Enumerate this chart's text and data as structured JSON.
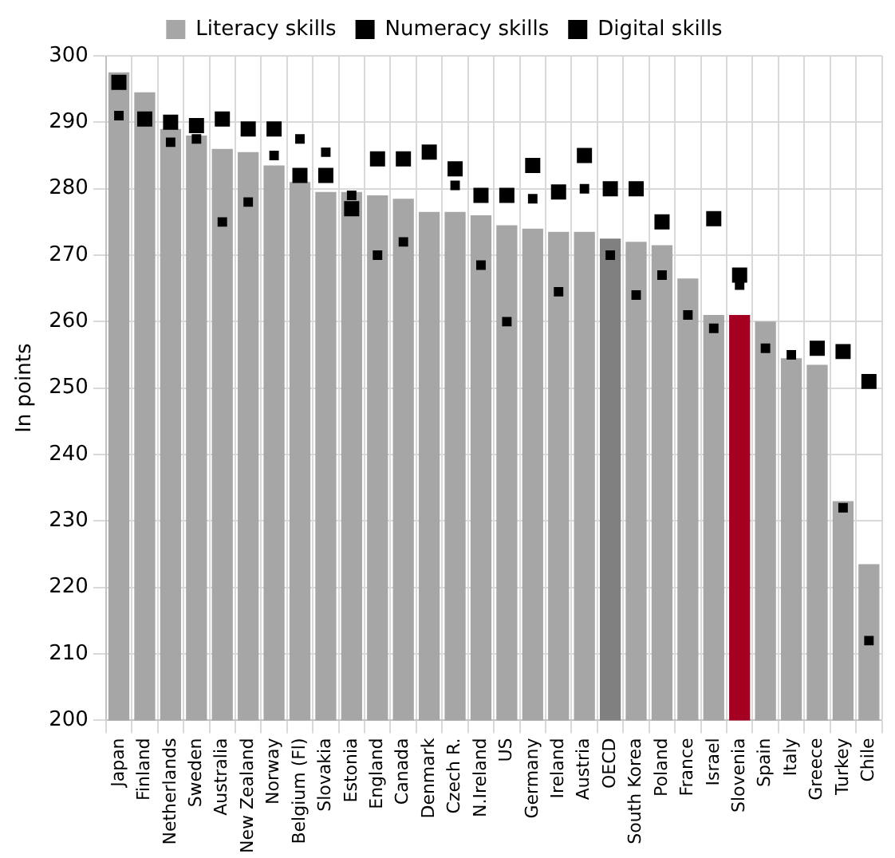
{
  "chart_data": {
    "type": "bar",
    "ylabel": "In points",
    "categories": [
      "Japan",
      "Finland",
      "Netherlands",
      "Sweden",
      "Australia",
      "New Zealand",
      "Norway",
      "Belgium (Fl)",
      "Slovakia",
      "Estonia",
      "England",
      "Canada",
      "Denmark",
      "Czech R.",
      "N.Ireland",
      "US",
      "Germany",
      "Ireland",
      "Austria",
      "OECD",
      "South Korea",
      "Poland",
      "France",
      "Israel",
      "Slovenia",
      "Spain",
      "Italy",
      "Greece",
      "Turkey",
      "Chile"
    ],
    "series": [
      {
        "name": "Literacy skills",
        "type": "bar",
        "color": "#a6a6a6",
        "colors": [
          "#a6a6a6",
          "#a6a6a6",
          "#a6a6a6",
          "#a6a6a6",
          "#a6a6a6",
          "#a6a6a6",
          "#a6a6a6",
          "#a6a6a6",
          "#a6a6a6",
          "#a6a6a6",
          "#a6a6a6",
          "#a6a6a6",
          "#a6a6a6",
          "#a6a6a6",
          "#a6a6a6",
          "#a6a6a6",
          "#a6a6a6",
          "#a6a6a6",
          "#a6a6a6",
          "#808080",
          "#a6a6a6",
          "#a6a6a6",
          "#a6a6a6",
          "#a6a6a6",
          "#a50021",
          "#a6a6a6",
          "#a6a6a6",
          "#a6a6a6",
          "#a6a6a6",
          "#a6a6a6"
        ],
        "values": [
          297.5,
          294.5,
          289,
          288,
          286,
          285.5,
          283.5,
          281,
          279.5,
          279.5,
          279,
          278.5,
          276.5,
          276.5,
          276,
          274.5,
          274,
          273.5,
          273.5,
          272.5,
          272,
          271.5,
          266.5,
          261,
          261,
          260,
          254.5,
          253.5,
          233,
          223.5
        ]
      },
      {
        "name": "Numeracy skills",
        "type": "scatter",
        "marker": "square",
        "color": "#000000",
        "values": [
          291,
          null,
          287,
          287.5,
          275,
          278,
          285,
          287.5,
          285.5,
          279,
          270,
          272,
          null,
          280.5,
          268.5,
          260,
          278.5,
          264.5,
          280,
          270,
          264,
          267,
          261,
          259,
          265.5,
          256,
          255,
          null,
          232,
          212
        ]
      },
      {
        "name": "Digital skills",
        "type": "scatter",
        "marker": "square",
        "color": "#000000",
        "values": [
          296,
          290.5,
          290,
          289.5,
          290.5,
          289,
          289,
          282,
          282,
          277,
          284.5,
          284.5,
          285.5,
          283,
          279,
          279,
          283.5,
          279.5,
          285,
          280,
          280,
          275,
          null,
          275.5,
          267,
          null,
          null,
          256,
          255.5,
          251
        ]
      }
    ],
    "ylim": [
      200,
      300
    ],
    "yticks": [
      200,
      210,
      220,
      230,
      240,
      250,
      260,
      270,
      280,
      290,
      300
    ],
    "grid": true,
    "legend": "top"
  }
}
